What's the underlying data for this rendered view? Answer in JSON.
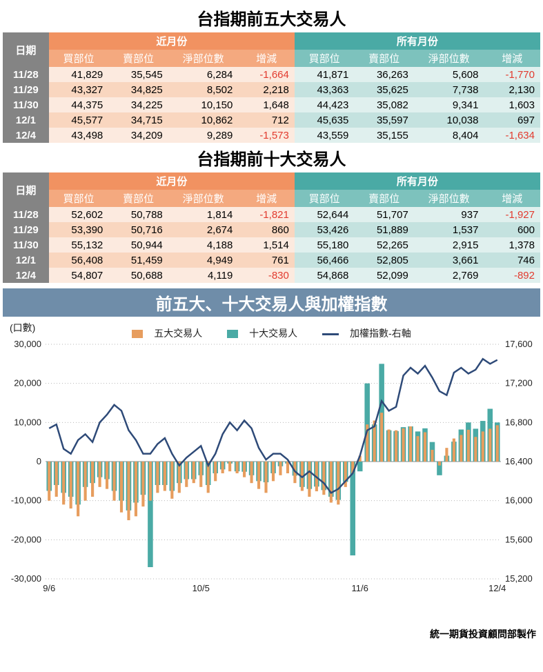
{
  "table1": {
    "title": "台指期前五大交易人",
    "date_header": "日期",
    "group_near": "近月份",
    "group_all": "所有月份",
    "cols": [
      "買部位",
      "賣部位",
      "淨部位數",
      "增減"
    ],
    "dates": [
      "11/28",
      "11/29",
      "11/30",
      "12/1",
      "12/4"
    ],
    "near": [
      [
        "41,829",
        "35,545",
        "6,284",
        "-1,664"
      ],
      [
        "43,327",
        "34,825",
        "8,502",
        "2,218"
      ],
      [
        "44,375",
        "34,225",
        "10,150",
        "1,648"
      ],
      [
        "45,577",
        "34,715",
        "10,862",
        "712"
      ],
      [
        "43,498",
        "34,209",
        "9,289",
        "-1,573"
      ]
    ],
    "all": [
      [
        "41,871",
        "36,263",
        "5,608",
        "-1,770"
      ],
      [
        "43,363",
        "35,625",
        "7,738",
        "2,130"
      ],
      [
        "44,423",
        "35,082",
        "9,341",
        "1,603"
      ],
      [
        "45,635",
        "35,597",
        "10,038",
        "697"
      ],
      [
        "43,559",
        "35,155",
        "8,404",
        "-1,634"
      ]
    ]
  },
  "table2": {
    "title": "台指期前十大交易人",
    "date_header": "日期",
    "group_near": "近月份",
    "group_all": "所有月份",
    "cols": [
      "買部位",
      "賣部位",
      "淨部位數",
      "增減"
    ],
    "dates": [
      "11/28",
      "11/29",
      "11/30",
      "12/1",
      "12/4"
    ],
    "near": [
      [
        "52,602",
        "50,788",
        "1,814",
        "-1,821"
      ],
      [
        "53,390",
        "50,716",
        "2,674",
        "860"
      ],
      [
        "55,132",
        "50,944",
        "4,188",
        "1,514"
      ],
      [
        "56,408",
        "51,459",
        "4,949",
        "761"
      ],
      [
        "54,807",
        "50,688",
        "4,119",
        "-830"
      ]
    ],
    "all": [
      [
        "52,644",
        "51,707",
        "937",
        "-1,927"
      ],
      [
        "53,426",
        "51,889",
        "1,537",
        "600"
      ],
      [
        "55,180",
        "52,265",
        "2,915",
        "1,378"
      ],
      [
        "56,466",
        "52,805",
        "3,661",
        "746"
      ],
      [
        "54,868",
        "52,099",
        "2,769",
        "-892"
      ]
    ]
  },
  "chart": {
    "title": "前五大、十大交易人與加權指數",
    "y_label_left": "(口數)",
    "legend": {
      "five": "五大交易人",
      "ten": "十大交易人",
      "index": "加權指數-右軸"
    },
    "colors": {
      "five": "#e79d5e",
      "ten": "#4aaaa5",
      "line": "#2e4a78",
      "grid": "#b5b5b5",
      "title_bg": "#6f8da9"
    },
    "y_left": {
      "min": -30000,
      "max": 30000,
      "step": 10000,
      "ticks": [
        "-30,000",
        "-20,000",
        "-10,000",
        "0",
        "10,000",
        "20,000",
        "30,000"
      ]
    },
    "y_right": {
      "min": 15200,
      "max": 17600,
      "step": 400,
      "ticks": [
        "15,200",
        "15,600",
        "16,000",
        "16,400",
        "16,800",
        "17,200",
        "17,600"
      ]
    },
    "x_labels": {
      "0": "9/6",
      "21": "10/5",
      "43": "11/6",
      "62": "12/4"
    },
    "n_points": 63,
    "bars_five": [
      -10000,
      -9000,
      -11000,
      -12000,
      -14000,
      -10000,
      -9000,
      -6500,
      -7000,
      -10000,
      -13000,
      -15000,
      -14000,
      -11500,
      -10000,
      -8000,
      -7500,
      -9500,
      -8000,
      -6500,
      -5500,
      -6500,
      -8000,
      -5000,
      -3000,
      -2500,
      -3000,
      -4000,
      -5500,
      -7000,
      -8000,
      -5000,
      -3500,
      -3000,
      -5500,
      -7500,
      -9000,
      -7600,
      -8500,
      -10500,
      -11000,
      -6500,
      -3000,
      1500,
      9500,
      10500,
      12500,
      8200,
      8000,
      8500,
      9000,
      6500,
      7500,
      3000,
      -1000,
      3500,
      5900,
      6800,
      8130,
      6300,
      7700,
      8400,
      9300
    ],
    "bars_ten": [
      -7500,
      -6000,
      -8000,
      -9000,
      -11000,
      -6500,
      -5500,
      -4000,
      -4500,
      -7500,
      -10000,
      -12500,
      -10500,
      -8500,
      -27000,
      -6000,
      -6000,
      -7500,
      -5500,
      -4500,
      -4500,
      -3500,
      -6000,
      -3000,
      -2000,
      -500,
      -2500,
      -2600,
      -3500,
      -5000,
      -5300,
      -3000,
      -1200,
      -500,
      -3600,
      -6500,
      -7000,
      -6400,
      -7300,
      -9000,
      -9800,
      -5200,
      -24000,
      -2500,
      20000,
      9500,
      25000,
      8000,
      7800,
      8800,
      9000,
      7700,
      8500,
      5000,
      -3500,
      1500,
      5100,
      8200,
      10000,
      8400,
      10400,
      13500,
      10000
    ],
    "index_line": [
      16740,
      16780,
      16530,
      16480,
      16620,
      16680,
      16600,
      16800,
      16880,
      16980,
      16920,
      16720,
      16620,
      16480,
      16480,
      16580,
      16640,
      16480,
      16360,
      16440,
      16500,
      16560,
      16360,
      16480,
      16680,
      16800,
      16720,
      16820,
      16740,
      16540,
      16420,
      16480,
      16480,
      16420,
      16300,
      16240,
      16300,
      16240,
      16180,
      16080,
      16120,
      16200,
      16280,
      16460,
      16720,
      16760,
      17020,
      16920,
      16960,
      17280,
      17360,
      17300,
      17380,
      17260,
      17120,
      17080,
      17310,
      17360,
      17300,
      17340,
      17450,
      17400,
      17440
    ],
    "footer": "統一期貨投資顧問部製作"
  }
}
